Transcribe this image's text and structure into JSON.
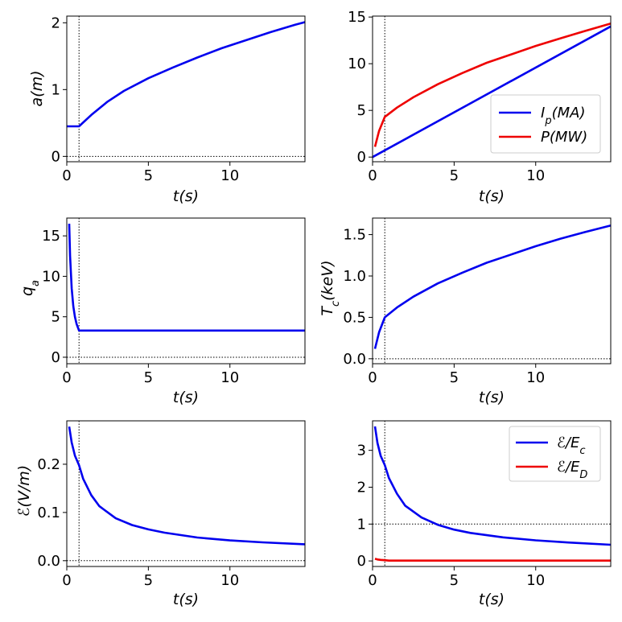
{
  "colors": {
    "blue": "#0000ee",
    "red": "#ee0000"
  },
  "chart_data": [
    {
      "id": "a",
      "type": "line",
      "xlabel": "t(s)",
      "ylabel": "a(m)",
      "xlim": [
        0,
        14.6
      ],
      "ylim": [
        -0.08,
        2.1
      ],
      "xticks": [
        0,
        5,
        10
      ],
      "xtick_labels": [
        "0",
        "5",
        "10"
      ],
      "yticks": [
        0,
        1,
        2
      ],
      "ytick_labels": [
        "0",
        "1",
        "2"
      ],
      "vline": 0.75,
      "hline": 0,
      "series": [
        {
          "name": "a",
          "color": "#0000ee",
          "x": [
            0.0,
            0.75,
            1.5,
            2.5,
            3.5,
            5,
            6.5,
            8,
            9.5,
            11,
            12.5,
            14,
            14.6
          ],
          "y": [
            0.45,
            0.45,
            0.62,
            0.82,
            0.98,
            1.17,
            1.33,
            1.48,
            1.62,
            1.74,
            1.86,
            1.97,
            2.01
          ]
        }
      ],
      "legend": null
    },
    {
      "id": "ip_p",
      "type": "line",
      "xlabel": "t(s)",
      "ylabel": "",
      "xlim": [
        0,
        14.6
      ],
      "ylim": [
        -0.5,
        15.1
      ],
      "xticks": [
        0,
        5,
        10
      ],
      "xtick_labels": [
        "0",
        "5",
        "10"
      ],
      "yticks": [
        0,
        5,
        10,
        15
      ],
      "ytick_labels": [
        "0",
        "5",
        "10",
        "15"
      ],
      "vline": 0.75,
      "hline": null,
      "series": [
        {
          "name": "I_p(MA)",
          "color": "#0000ee",
          "x": [
            0.0,
            14.6
          ],
          "y": [
            0.0,
            14.0
          ]
        },
        {
          "name": "P(MW)",
          "color": "#ee0000",
          "x": [
            0.15,
            0.4,
            0.75,
            1.5,
            2.5,
            4,
            5.5,
            7,
            8.5,
            10,
            11.5,
            13,
            14.6
          ],
          "y": [
            1.1,
            2.8,
            4.3,
            5.3,
            6.4,
            7.8,
            9.0,
            10.1,
            11.0,
            11.9,
            12.7,
            13.5,
            14.3
          ]
        }
      ],
      "legend": {
        "position": "lower-right",
        "entries": [
          "I_p(MA)",
          "P(MW)"
        ]
      }
    },
    {
      "id": "qa",
      "type": "line",
      "xlabel": "t(s)",
      "ylabel": "q_a",
      "xlim": [
        0,
        14.6
      ],
      "ylim": [
        -0.8,
        17.2
      ],
      "xticks": [
        0,
        5,
        10
      ],
      "xtick_labels": [
        "0",
        "5",
        "10"
      ],
      "yticks": [
        0,
        5,
        10,
        15
      ],
      "ytick_labels": [
        "0",
        "5",
        "10",
        "15"
      ],
      "vline": 0.75,
      "hline": 0,
      "series": [
        {
          "name": "q_a",
          "color": "#0000ee",
          "x": [
            0.15,
            0.2,
            0.3,
            0.4,
            0.5,
            0.6,
            0.75,
            1.0,
            14.6
          ],
          "y": [
            16.5,
            12.5,
            8.5,
            6.3,
            5.0,
            4.1,
            3.3,
            3.3,
            3.3
          ]
        }
      ],
      "legend": null
    },
    {
      "id": "tc",
      "type": "line",
      "xlabel": "t(s)",
      "ylabel": "T_c(keV)",
      "xlim": [
        0,
        14.6
      ],
      "ylim": [
        -0.06,
        1.7
      ],
      "xticks": [
        0,
        5,
        10
      ],
      "xtick_labels": [
        "0",
        "5",
        "10"
      ],
      "yticks": [
        0.0,
        0.5,
        1.0,
        1.5
      ],
      "ytick_labels": [
        "0.0",
        "0.5",
        "1.0",
        "1.5"
      ],
      "vline": 0.75,
      "hline": 0,
      "series": [
        {
          "name": "T_c",
          "color": "#0000ee",
          "x": [
            0.15,
            0.4,
            0.75,
            1.5,
            2.5,
            4,
            5.5,
            7,
            8.5,
            10,
            11.5,
            13,
            14.6
          ],
          "y": [
            0.12,
            0.32,
            0.5,
            0.62,
            0.75,
            0.91,
            1.04,
            1.16,
            1.26,
            1.36,
            1.45,
            1.53,
            1.61
          ]
        }
      ],
      "legend": null
    },
    {
      "id": "e_field",
      "type": "line",
      "xlabel": "t(s)",
      "ylabel": "ℰ(V/m)",
      "xlim": [
        0,
        14.6
      ],
      "ylim": [
        -0.012,
        0.29
      ],
      "xticks": [
        0,
        5,
        10
      ],
      "xtick_labels": [
        "0",
        "5",
        "10"
      ],
      "yticks": [
        0.0,
        0.1,
        0.2
      ],
      "ytick_labels": [
        "0.0",
        "0.1",
        "0.2"
      ],
      "vline": 0.75,
      "hline": 0,
      "series": [
        {
          "name": "E",
          "color": "#0000ee",
          "x": [
            0.15,
            0.3,
            0.5,
            0.75,
            1.0,
            1.5,
            2,
            3,
            4,
            5,
            6,
            8,
            10,
            12,
            14.6
          ],
          "y": [
            0.278,
            0.245,
            0.218,
            0.198,
            0.17,
            0.136,
            0.113,
            0.088,
            0.074,
            0.065,
            0.058,
            0.048,
            0.042,
            0.038,
            0.034
          ]
        }
      ],
      "legend": null
    },
    {
      "id": "e_ratio",
      "type": "line",
      "xlabel": "t(s)",
      "ylabel": "",
      "xlim": [
        0,
        14.6
      ],
      "ylim": [
        -0.15,
        3.8
      ],
      "xticks": [
        0,
        5,
        10
      ],
      "xtick_labels": [
        "0",
        "5",
        "10"
      ],
      "yticks": [
        0,
        1,
        2,
        3
      ],
      "ytick_labels": [
        "0",
        "1",
        "2",
        "3"
      ],
      "vline": 0.75,
      "hline": 1,
      "series": [
        {
          "name": "ℰ/E_c",
          "color": "#0000ee",
          "x": [
            0.15,
            0.3,
            0.5,
            0.75,
            1.0,
            1.5,
            2,
            3,
            4,
            5,
            6,
            8,
            10,
            12,
            14.6
          ],
          "y": [
            3.65,
            3.2,
            2.85,
            2.6,
            2.25,
            1.82,
            1.5,
            1.18,
            0.98,
            0.85,
            0.76,
            0.64,
            0.56,
            0.5,
            0.44
          ]
        },
        {
          "name": "ℰ/E_D",
          "color": "#ee0000",
          "x": [
            0.15,
            0.3,
            0.5,
            0.75,
            1.0,
            2,
            5,
            10,
            14.6
          ],
          "y": [
            0.06,
            0.04,
            0.03,
            0.02,
            0.01,
            0.01,
            0.01,
            0.01,
            0.01
          ]
        }
      ],
      "legend": {
        "position": "top-right",
        "entries": [
          "ℰ/E_c",
          "ℰ/E_D"
        ]
      }
    }
  ]
}
